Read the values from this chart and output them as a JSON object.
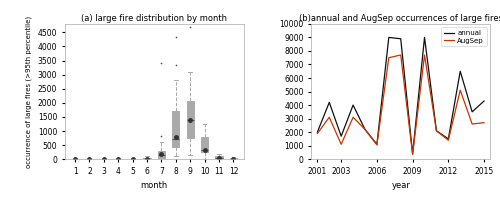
{
  "title_left": "(a) large fire distribution by month",
  "title_right": "(b)annual and AugSep occurrences of large fires",
  "ylabel_left": "occurrence of large fires (>95th percentile)",
  "xlabel_left": "month",
  "xlabel_right": "year",
  "box_data": {
    "1": {
      "min": 0,
      "q1": 0,
      "median": 0,
      "q3": 8,
      "max": 15,
      "mean": 4,
      "fliers": []
    },
    "2": {
      "min": 0,
      "q1": 0,
      "median": 0,
      "q3": 8,
      "max": 15,
      "mean": 4,
      "fliers": []
    },
    "3": {
      "min": 0,
      "q1": 0,
      "median": 0,
      "q3": 10,
      "max": 20,
      "mean": 5,
      "fliers": []
    },
    "4": {
      "min": 0,
      "q1": 0,
      "median": 0,
      "q3": 8,
      "max": 15,
      "mean": 4,
      "fliers": []
    },
    "5": {
      "min": 0,
      "q1": 0,
      "median": 0,
      "q3": 12,
      "max": 30,
      "mean": 6,
      "fliers": []
    },
    "6": {
      "min": 0,
      "q1": 0,
      "median": 5,
      "q3": 35,
      "max": 100,
      "mean": 20,
      "fliers": []
    },
    "7": {
      "min": 0,
      "q1": 20,
      "median": 160,
      "q3": 300,
      "max": 600,
      "mean": 190,
      "fliers": [
        820,
        3400
      ]
    },
    "8": {
      "min": 100,
      "q1": 450,
      "median": 700,
      "q3": 1700,
      "max": 2800,
      "mean": 800,
      "fliers": [
        3350,
        4350
      ]
    },
    "9": {
      "min": 150,
      "q1": 750,
      "median": 1400,
      "q3": 2050,
      "max": 3100,
      "mean": 1380,
      "fliers": [
        4700
      ]
    },
    "10": {
      "min": 0,
      "q1": 250,
      "median": 330,
      "q3": 800,
      "max": 1250,
      "mean": 330,
      "fliers": []
    },
    "11": {
      "min": 0,
      "q1": 15,
      "median": 50,
      "q3": 100,
      "max": 180,
      "mean": 50,
      "fliers": []
    },
    "12": {
      "min": 0,
      "q1": 0,
      "median": 10,
      "q3": 35,
      "max": 80,
      "mean": 15,
      "fliers": []
    }
  },
  "ylim_left": [
    0,
    4800
  ],
  "yticks_left": [
    0,
    500,
    1000,
    1500,
    2000,
    2500,
    3000,
    3500,
    4000,
    4500
  ],
  "years": [
    2001,
    2002,
    2003,
    2004,
    2005,
    2006,
    2007,
    2008,
    2009,
    2010,
    2011,
    2012,
    2013,
    2014,
    2015
  ],
  "annual": [
    2000,
    4200,
    1700,
    4000,
    2200,
    1100,
    9000,
    8900,
    400,
    9000,
    2100,
    1500,
    6500,
    3500,
    4300
  ],
  "augsep": [
    1900,
    3100,
    1100,
    3100,
    2200,
    1050,
    7500,
    7700,
    350,
    7700,
    2100,
    1400,
    5100,
    2600,
    2700
  ],
  "ylim_right": [
    0,
    10000
  ],
  "yticks_right": [
    0,
    1000,
    2000,
    3000,
    4000,
    5000,
    6000,
    7000,
    8000,
    9000,
    10000
  ],
  "line_annual_color": "#111111",
  "line_augsep_color": "#cc3300",
  "background_color": "#ffffff",
  "box_facecolor": "#ffffff",
  "box_edgecolor": "#aaaaaa",
  "median_color": "#555555",
  "mean_marker_color": "#333333",
  "whisker_color": "#aaaaaa",
  "flier_color": "#555555",
  "spine_color": "#aaaaaa"
}
